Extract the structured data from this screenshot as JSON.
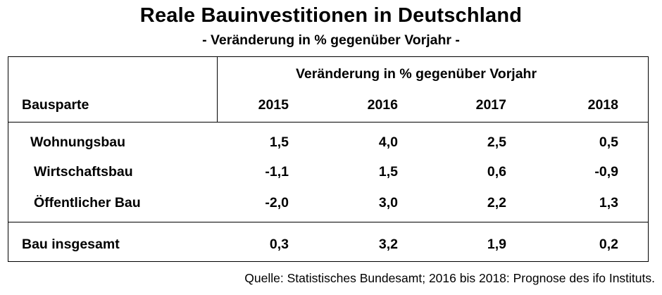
{
  "chart_data": {
    "type": "table",
    "title": "Reale Bauinvestitionen in Deutschland",
    "subtitle": "- Veränderung in % gegenüber Vorjahr -",
    "column_group_header": "Veränderung in % gegenüber Vorjahr",
    "row_header": "Bausparte",
    "columns": [
      "2015",
      "2016",
      "2017",
      "2018"
    ],
    "rows": [
      {
        "label": "Wohnungsbau",
        "values": [
          "1,5",
          "4,0",
          "2,5",
          "0,5"
        ]
      },
      {
        "label": "Wirtschaftsbau",
        "values": [
          "-1,1",
          "1,5",
          "0,6",
          "-0,9"
        ]
      },
      {
        "label": "Öffentlicher Bau",
        "values": [
          "-2,0",
          "3,0",
          "2,2",
          "1,3"
        ]
      }
    ],
    "total": {
      "label": "Bau insgesamt",
      "values": [
        "0,3",
        "3,2",
        "1,9",
        "0,2"
      ]
    },
    "source": "Quelle: Statistisches Bundesamt; 2016 bis 2018: Prognose des ifo Instituts."
  }
}
